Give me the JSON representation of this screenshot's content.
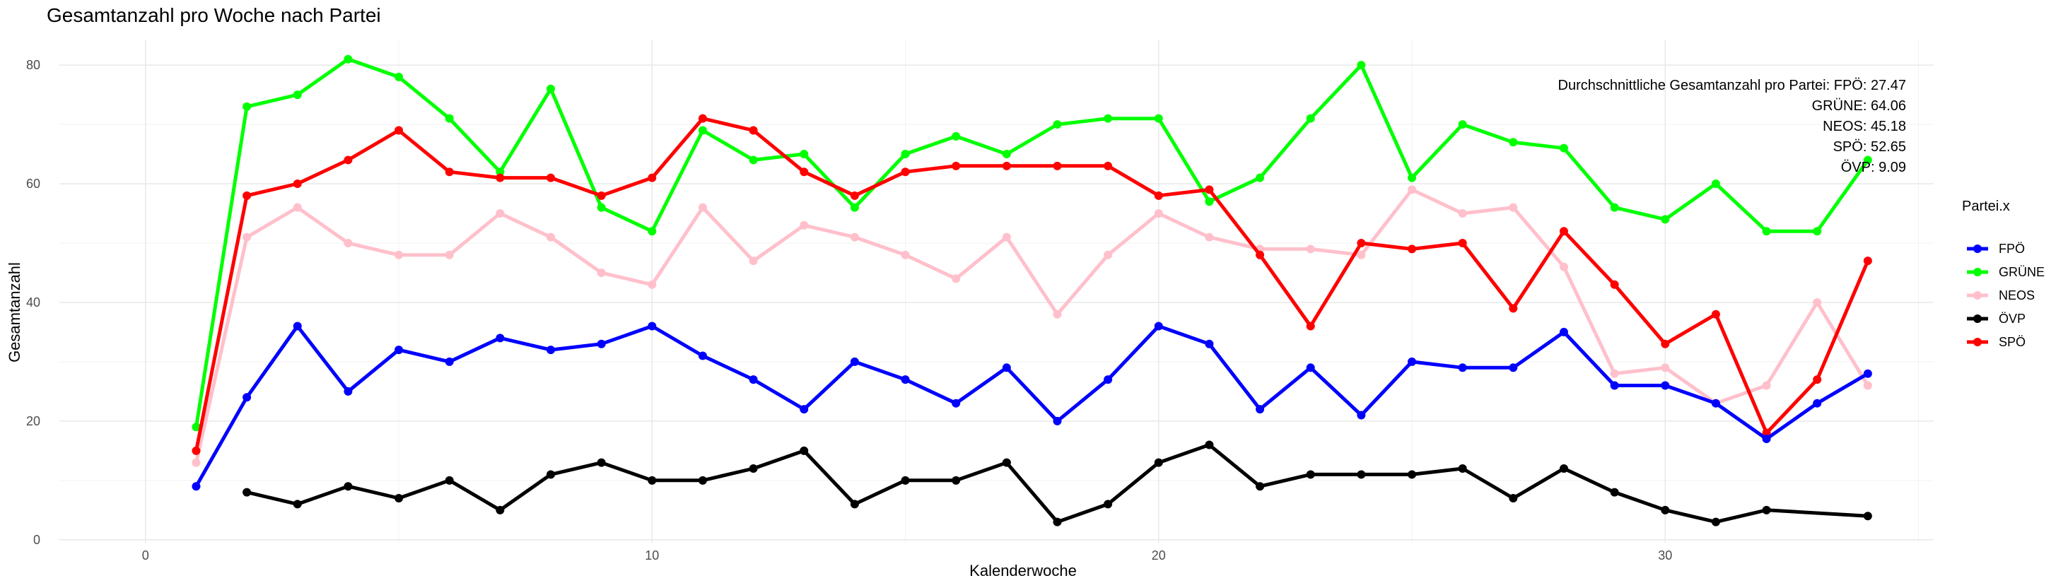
{
  "chart_data": {
    "type": "line",
    "title": "Gesamtanzahl pro Woche nach Partei",
    "xlabel": "Kalenderwoche",
    "ylabel": "Gesamtanzahl",
    "xlim": [
      -1.7,
      35.3
    ],
    "ylim": [
      -0.5,
      84.3
    ],
    "xticks": [
      0,
      10,
      20,
      30
    ],
    "yticks": [
      0,
      20,
      40,
      60,
      80
    ],
    "grid": true,
    "legend": {
      "title": "Partei.x",
      "position": "right"
    },
    "annotation": [
      "Durchschnittliche Gesamtanzahl pro Partei: FPÖ: 27.47",
      "GRÜNE: 64.06",
      "NEOS: 45.18",
      "SPÖ: 52.65",
      "ÖVP: 9.09"
    ],
    "series": [
      {
        "name": "GRÜNE",
        "color": "#00ff00",
        "x": [
          1,
          2,
          3,
          4,
          5,
          6,
          7,
          8,
          9,
          10,
          11,
          12,
          13,
          14,
          15,
          16,
          17,
          18,
          19,
          20,
          21,
          22,
          23,
          24,
          25,
          26,
          27,
          28,
          29,
          30,
          31,
          32,
          33,
          34
        ],
        "y": [
          19,
          73,
          75,
          81,
          78,
          71,
          62,
          76,
          56,
          52,
          69,
          64,
          65,
          56,
          65,
          68,
          65,
          70,
          71,
          71,
          57,
          61,
          71,
          80,
          61,
          70,
          67,
          66,
          56,
          54,
          60,
          52,
          52,
          64
        ]
      },
      {
        "name": "NEOS",
        "color": "#ffc0cb",
        "x": [
          1,
          2,
          3,
          4,
          5,
          6,
          7,
          8,
          9,
          10,
          11,
          12,
          13,
          14,
          15,
          16,
          17,
          18,
          19,
          20,
          21,
          22,
          23,
          24,
          25,
          26,
          27,
          28,
          29,
          30,
          31,
          32,
          33,
          34
        ],
        "y": [
          13,
          51,
          56,
          50,
          48,
          48,
          55,
          51,
          45,
          43,
          56,
          47,
          53,
          51,
          48,
          44,
          51,
          38,
          48,
          55,
          51,
          49,
          49,
          48,
          59,
          55,
          56,
          46,
          28,
          29,
          23,
          26,
          40,
          26
        ]
      },
      {
        "name": "SPÖ",
        "color": "#ff0000",
        "x": [
          1,
          2,
          3,
          4,
          5,
          6,
          7,
          8,
          9,
          10,
          11,
          12,
          13,
          14,
          15,
          16,
          17,
          18,
          19,
          20,
          21,
          22,
          23,
          24,
          25,
          26,
          27,
          28,
          29,
          30,
          31,
          32,
          33,
          34
        ],
        "y": [
          15,
          58,
          60,
          64,
          69,
          62,
          61,
          61,
          58,
          61,
          71,
          69,
          62,
          58,
          62,
          63,
          63,
          63,
          63,
          58,
          59,
          48,
          36,
          50,
          49,
          50,
          39,
          52,
          43,
          33,
          38,
          18,
          27,
          47
        ]
      },
      {
        "name": "FPÖ",
        "color": "#0000ff",
        "x": [
          1,
          2,
          3,
          4,
          5,
          6,
          7,
          8,
          9,
          10,
          11,
          12,
          13,
          14,
          15,
          16,
          17,
          18,
          19,
          20,
          21,
          22,
          23,
          24,
          25,
          26,
          27,
          28,
          29,
          30,
          31,
          32,
          33,
          34
        ],
        "y": [
          9,
          24,
          36,
          25,
          32,
          30,
          34,
          32,
          33,
          36,
          31,
          27,
          22,
          30,
          27,
          23,
          29,
          20,
          27,
          36,
          33,
          22,
          29,
          21,
          30,
          29,
          29,
          35,
          26,
          26,
          23,
          17,
          23,
          28
        ]
      },
      {
        "name": "ÖVP",
        "color": "#000000",
        "x": [
          2,
          3,
          4,
          5,
          6,
          7,
          8,
          9,
          10,
          11,
          12,
          13,
          14,
          15,
          16,
          17,
          18,
          19,
          20,
          21,
          22,
          23,
          24,
          25,
          26,
          27,
          28,
          29,
          30,
          31,
          32,
          34
        ],
        "y": [
          8,
          6,
          9,
          7,
          10,
          5,
          11,
          13,
          10,
          10,
          12,
          15,
          6,
          10,
          10,
          13,
          3,
          6,
          13,
          16,
          9,
          11,
          11,
          11,
          12,
          7,
          12,
          8,
          5,
          3,
          5,
          4
        ]
      }
    ]
  }
}
